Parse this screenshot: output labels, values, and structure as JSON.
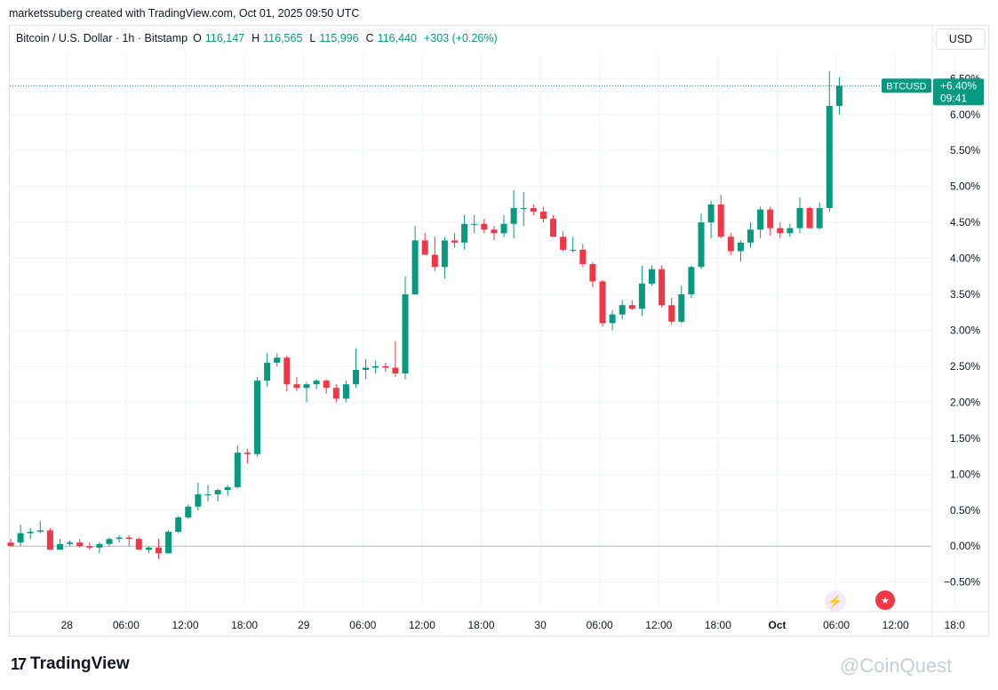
{
  "credit": "marketssuberg created with TradingView.com, Oct 01, 2025 09:50 UTC",
  "legend": {
    "symbol": "Bitcoin / U.S. Dollar · 1h · Bitstamp",
    "o_label": "O",
    "o": "116,147",
    "h_label": "H",
    "h": "116,565",
    "l_label": "L",
    "l": "115,996",
    "c_label": "C",
    "c": "116,440",
    "change": "+303 (+0.26%)"
  },
  "currency": "USD",
  "price_tag": {
    "symbol": "BTCUSD",
    "value": "+6.40%",
    "countdown": "09:41"
  },
  "footer": {
    "brand": "TradingView",
    "watermark": "@CoinQuest"
  },
  "colors": {
    "up": "#089981",
    "down": "#f23645",
    "grid": "#f0f3fa",
    "text": "#131722"
  },
  "icons": {
    "events": "lightning-icon",
    "economic": "us-flag-icon"
  },
  "chart_data": {
    "type": "candlestick",
    "y_unit": "%",
    "ylim": [
      -0.85,
      6.85
    ],
    "y_ticks": [
      -0.5,
      0,
      0.5,
      1.0,
      1.5,
      2.0,
      2.5,
      3.0,
      3.5,
      4.0,
      4.5,
      5.0,
      5.5,
      6.0,
      6.5
    ],
    "y_tick_labels": [
      "−0.50%",
      "0.00%",
      "0.50%",
      "1.00%",
      "1.50%",
      "2.00%",
      "2.50%",
      "3.00%",
      "3.50%",
      "4.00%",
      "4.50%",
      "5.00%",
      "5.50%",
      "6.00%",
      "6.50%"
    ],
    "x_ticks": [
      {
        "label": "28",
        "bar": 3,
        "bold": false
      },
      {
        "label": "06:00",
        "bar": 9,
        "bold": false
      },
      {
        "label": "12:00",
        "bar": 15,
        "bold": false
      },
      {
        "label": "18:00",
        "bar": 21,
        "bold": false
      },
      {
        "label": "29",
        "bar": 27,
        "bold": false
      },
      {
        "label": "06:00",
        "bar": 33,
        "bold": false
      },
      {
        "label": "12:00",
        "bar": 39,
        "bold": false
      },
      {
        "label": "18:00",
        "bar": 45,
        "bold": false
      },
      {
        "label": "30",
        "bar": 51,
        "bold": false
      },
      {
        "label": "06:00",
        "bar": 57,
        "bold": false
      },
      {
        "label": "12:00",
        "bar": 63,
        "bold": false
      },
      {
        "label": "18:00",
        "bar": 69,
        "bold": false
      },
      {
        "label": "Oct",
        "bar": 75,
        "bold": true
      },
      {
        "label": "06:00",
        "bar": 81,
        "bold": false
      },
      {
        "label": "12:00",
        "bar": 87,
        "bold": false
      },
      {
        "label": "18:0",
        "bar": 93,
        "bold": false
      }
    ],
    "baseline": 0,
    "last_value": 6.4,
    "candles": [
      [
        0.05,
        0.1,
        0.0,
        0.0
      ],
      [
        0.05,
        0.3,
        0.0,
        0.18
      ],
      [
        0.18,
        0.25,
        0.1,
        0.2
      ],
      [
        0.2,
        0.35,
        0.18,
        0.22
      ],
      [
        0.22,
        0.25,
        -0.05,
        -0.05
      ],
      [
        -0.05,
        0.1,
        -0.05,
        0.03
      ],
      [
        0.03,
        0.08,
        0.0,
        0.05
      ],
      [
        0.05,
        0.1,
        -0.02,
        0.0
      ],
      [
        0.0,
        0.05,
        -0.05,
        -0.02
      ],
      [
        -0.02,
        0.05,
        -0.1,
        0.03
      ],
      [
        0.03,
        0.12,
        0.0,
        0.1
      ],
      [
        0.1,
        0.15,
        0.05,
        0.12
      ],
      [
        0.12,
        0.15,
        0.0,
        0.1
      ],
      [
        0.1,
        0.12,
        -0.05,
        -0.05
      ],
      [
        -0.05,
        0.0,
        -0.1,
        -0.02
      ],
      [
        -0.02,
        0.1,
        -0.18,
        -0.1
      ],
      [
        -0.1,
        0.22,
        -0.1,
        0.2
      ],
      [
        0.2,
        0.42,
        0.18,
        0.4
      ],
      [
        0.4,
        0.58,
        0.38,
        0.55
      ],
      [
        0.55,
        0.88,
        0.5,
        0.72
      ],
      [
        0.72,
        0.85,
        0.62,
        0.72
      ],
      [
        0.72,
        0.8,
        0.62,
        0.78
      ],
      [
        0.78,
        0.85,
        0.7,
        0.82
      ],
      [
        0.82,
        1.4,
        0.8,
        1.3
      ],
      [
        1.3,
        1.35,
        1.15,
        1.28
      ],
      [
        1.28,
        2.35,
        1.25,
        2.3
      ],
      [
        2.3,
        2.68,
        2.22,
        2.55
      ],
      [
        2.55,
        2.68,
        2.5,
        2.62
      ],
      [
        2.62,
        2.65,
        2.15,
        2.25
      ],
      [
        2.25,
        2.35,
        2.15,
        2.2
      ],
      [
        2.2,
        2.28,
        2.0,
        2.25
      ],
      [
        2.25,
        2.32,
        2.18,
        2.3
      ],
      [
        2.3,
        2.32,
        2.12,
        2.2
      ],
      [
        2.2,
        2.25,
        2.0,
        2.05
      ],
      [
        2.05,
        2.3,
        2.0,
        2.25
      ],
      [
        2.25,
        2.75,
        2.2,
        2.45
      ],
      [
        2.45,
        2.6,
        2.32,
        2.48
      ],
      [
        2.48,
        2.58,
        2.4,
        2.5
      ],
      [
        2.5,
        2.55,
        2.42,
        2.48
      ],
      [
        2.48,
        2.85,
        2.35,
        2.4
      ],
      [
        2.4,
        3.75,
        2.32,
        3.5
      ],
      [
        3.5,
        4.45,
        3.5,
        4.25
      ],
      [
        4.25,
        4.35,
        4.05,
        4.05
      ],
      [
        4.05,
        4.3,
        3.82,
        3.88
      ],
      [
        3.88,
        4.3,
        3.72,
        4.25
      ],
      [
        4.25,
        4.35,
        4.15,
        4.22
      ],
      [
        4.22,
        4.6,
        4.12,
        4.48
      ],
      [
        4.48,
        4.6,
        4.35,
        4.48
      ],
      [
        4.48,
        4.55,
        4.35,
        4.4
      ],
      [
        4.4,
        4.45,
        4.25,
        4.35
      ],
      [
        4.35,
        4.6,
        4.3,
        4.48
      ],
      [
        4.48,
        4.95,
        4.28,
        4.7
      ],
      [
        4.7,
        4.92,
        4.45,
        4.7
      ],
      [
        4.7,
        4.75,
        4.6,
        4.65
      ],
      [
        4.65,
        4.72,
        4.5,
        4.55
      ],
      [
        4.55,
        4.6,
        4.3,
        4.3
      ],
      [
        4.3,
        4.38,
        4.1,
        4.12
      ],
      [
        4.12,
        4.3,
        4.08,
        4.12
      ],
      [
        4.12,
        4.2,
        3.88,
        3.92
      ],
      [
        3.92,
        3.95,
        3.6,
        3.68
      ],
      [
        3.68,
        3.7,
        3.05,
        3.1
      ],
      [
        3.1,
        3.28,
        3.0,
        3.22
      ],
      [
        3.22,
        3.42,
        3.15,
        3.35
      ],
      [
        3.35,
        3.42,
        3.28,
        3.3
      ],
      [
        3.3,
        3.9,
        3.2,
        3.65
      ],
      [
        3.65,
        3.9,
        3.62,
        3.85
      ],
      [
        3.85,
        3.9,
        3.32,
        3.35
      ],
      [
        3.35,
        3.45,
        3.08,
        3.12
      ],
      [
        3.12,
        3.62,
        3.1,
        3.5
      ],
      [
        3.5,
        3.9,
        3.45,
        3.88
      ],
      [
        3.88,
        4.62,
        3.85,
        4.5
      ],
      [
        4.5,
        4.8,
        4.28,
        4.75
      ],
      [
        4.75,
        4.88,
        4.28,
        4.3
      ],
      [
        4.3,
        4.35,
        4.05,
        4.1
      ],
      [
        4.1,
        4.25,
        3.95,
        4.22
      ],
      [
        4.22,
        4.5,
        4.15,
        4.4
      ],
      [
        4.4,
        4.72,
        4.28,
        4.68
      ],
      [
        4.68,
        4.72,
        4.32,
        4.42
      ],
      [
        4.42,
        4.5,
        4.28,
        4.35
      ],
      [
        4.35,
        4.48,
        4.3,
        4.42
      ],
      [
        4.42,
        4.85,
        4.35,
        4.7
      ],
      [
        4.7,
        4.72,
        4.42,
        4.42
      ],
      [
        4.42,
        4.78,
        4.4,
        4.7
      ],
      [
        4.7,
        6.6,
        4.65,
        6.12
      ],
      [
        6.12,
        6.52,
        6.0,
        6.4
      ]
    ]
  }
}
